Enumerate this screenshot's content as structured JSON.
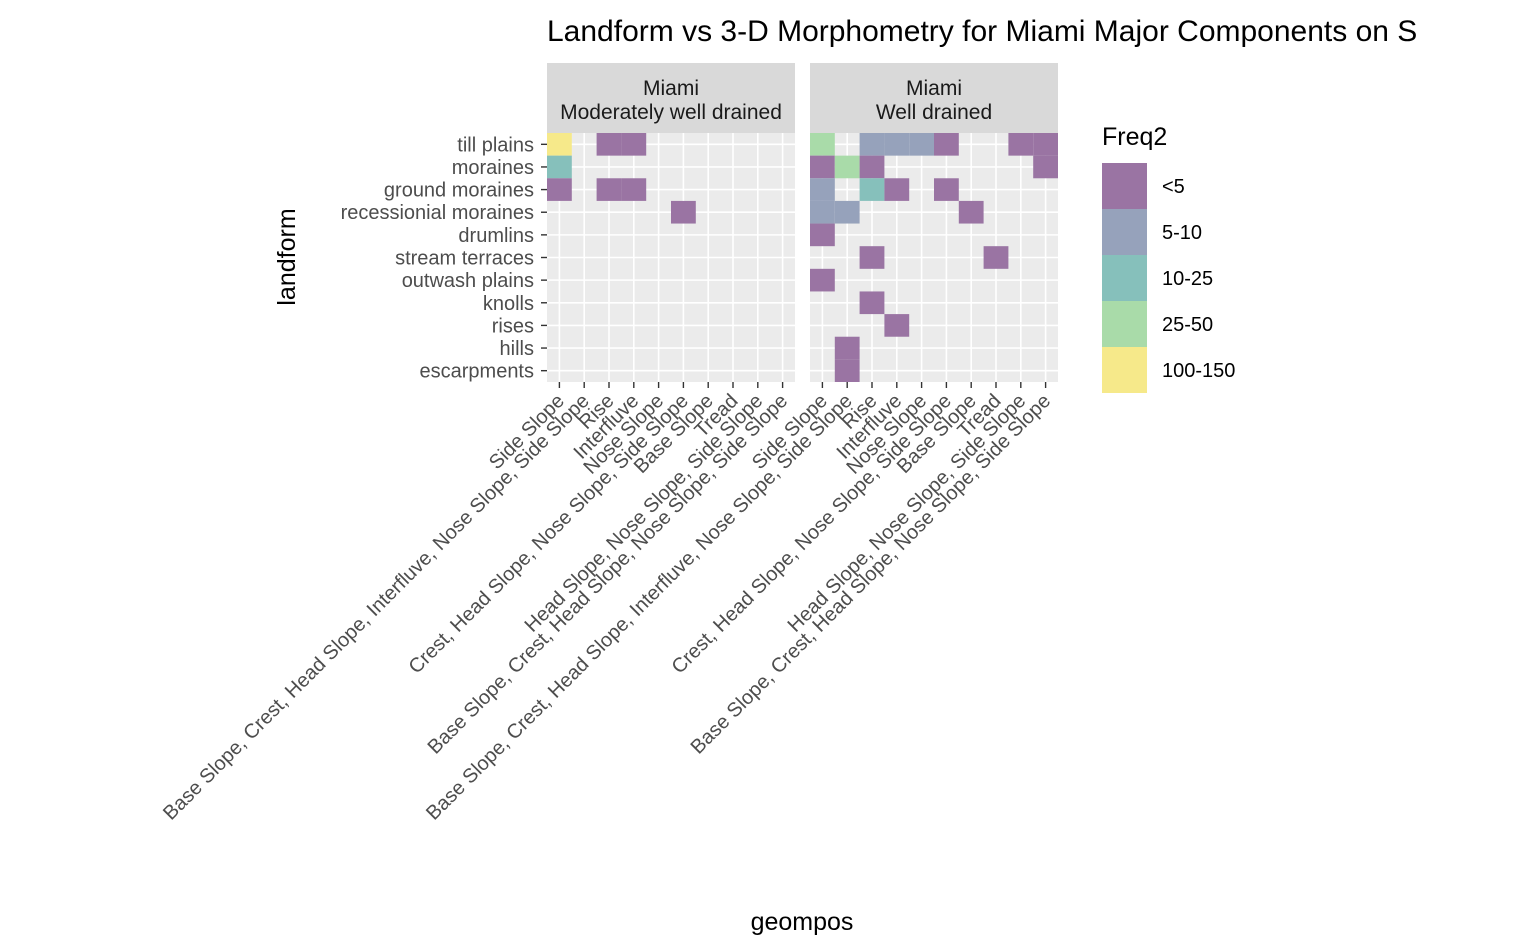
{
  "chart_data": {
    "type": "heatmap",
    "title": "Landform vs 3-D Morphometry for Miami Major Components on S",
    "xlabel": "geompos",
    "ylabel": "landform",
    "rows": [
      "till plains",
      "moraines",
      "ground moraines",
      "recessionial moraines",
      "drumlins",
      "stream terraces",
      "outwash plains",
      "knolls",
      "rises",
      "hills",
      "escarpments"
    ],
    "columns": [
      "Side Slope",
      "Base Slope, Crest, Head Slope, Interfluve, Nose Slope, Side Slope",
      "Rise",
      "Interfluve",
      "Nose Slope",
      "Crest, Head Slope, Nose Slope, Side Slope",
      "Base Slope",
      "Tread",
      "Head Slope, Nose Slope, Side Slope",
      "Base Slope, Crest, Head Slope, Nose Slope, Side Slope"
    ],
    "legend": {
      "title": "Freq2",
      "position": "right",
      "levels": [
        {
          "label": "<5",
          "color": "#9a74a3"
        },
        {
          "label": "5-10",
          "color": "#96a2bb"
        },
        {
          "label": "10-25",
          "color": "#86c0bb"
        },
        {
          "label": "25-50",
          "color": "#a9dba9"
        },
        {
          "label": "100-150",
          "color": "#f6e98a"
        }
      ]
    },
    "panels": [
      {
        "strip": [
          "Miami",
          "Moderately well drained"
        ],
        "cells": [
          {
            "row": "till plains",
            "col": 0,
            "level": "100-150"
          },
          {
            "row": "till plains",
            "col": 2,
            "level": "<5"
          },
          {
            "row": "till plains",
            "col": 3,
            "level": "<5"
          },
          {
            "row": "moraines",
            "col": 0,
            "level": "10-25"
          },
          {
            "row": "ground moraines",
            "col": 0,
            "level": "<5"
          },
          {
            "row": "ground moraines",
            "col": 2,
            "level": "<5"
          },
          {
            "row": "ground moraines",
            "col": 3,
            "level": "<5"
          },
          {
            "row": "recessionial moraines",
            "col": 5,
            "level": "<5"
          }
        ]
      },
      {
        "strip": [
          "Miami",
          "Well drained"
        ],
        "cells": [
          {
            "row": "till plains",
            "col": 0,
            "level": "25-50"
          },
          {
            "row": "till plains",
            "col": 2,
            "level": "5-10"
          },
          {
            "row": "till plains",
            "col": 3,
            "level": "5-10"
          },
          {
            "row": "till plains",
            "col": 4,
            "level": "5-10"
          },
          {
            "row": "till plains",
            "col": 5,
            "level": "<5"
          },
          {
            "row": "till plains",
            "col": 8,
            "level": "<5"
          },
          {
            "row": "till plains",
            "col": 9,
            "level": "<5"
          },
          {
            "row": "moraines",
            "col": 0,
            "level": "<5"
          },
          {
            "row": "moraines",
            "col": 1,
            "level": "25-50"
          },
          {
            "row": "moraines",
            "col": 2,
            "level": "<5"
          },
          {
            "row": "moraines",
            "col": 9,
            "level": "<5"
          },
          {
            "row": "ground moraines",
            "col": 0,
            "level": "5-10"
          },
          {
            "row": "ground moraines",
            "col": 2,
            "level": "10-25"
          },
          {
            "row": "ground moraines",
            "col": 3,
            "level": "<5"
          },
          {
            "row": "ground moraines",
            "col": 5,
            "level": "<5"
          },
          {
            "row": "recessionial moraines",
            "col": 0,
            "level": "5-10"
          },
          {
            "row": "recessionial moraines",
            "col": 1,
            "level": "5-10"
          },
          {
            "row": "recessionial moraines",
            "col": 6,
            "level": "<5"
          },
          {
            "row": "drumlins",
            "col": 0,
            "level": "<5"
          },
          {
            "row": "stream terraces",
            "col": 2,
            "level": "<5"
          },
          {
            "row": "stream terraces",
            "col": 7,
            "level": "<5"
          },
          {
            "row": "outwash plains",
            "col": 0,
            "level": "<5"
          },
          {
            "row": "knolls",
            "col": 2,
            "level": "<5"
          },
          {
            "row": "rises",
            "col": 3,
            "level": "<5"
          },
          {
            "row": "hills",
            "col": 1,
            "level": "<5"
          },
          {
            "row": "escarpments",
            "col": 1,
            "level": "<5"
          }
        ]
      }
    ]
  }
}
